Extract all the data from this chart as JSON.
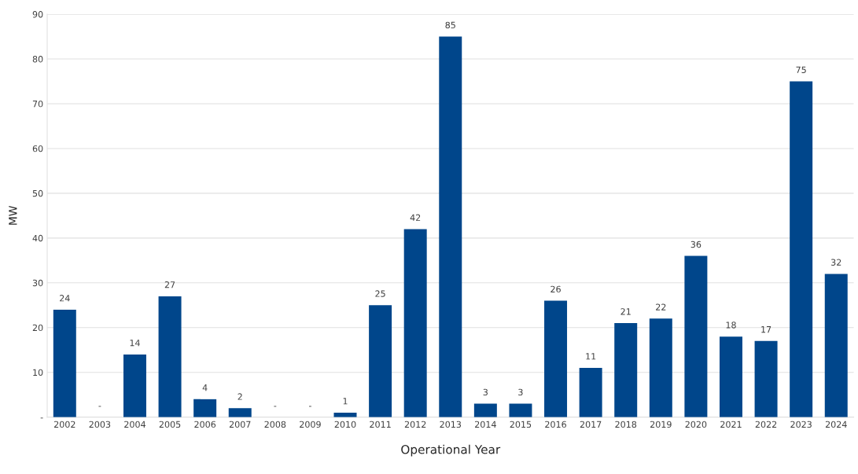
{
  "chart_data": {
    "type": "bar",
    "xlabel": "Operational Year",
    "ylabel": "MW",
    "categories": [
      "2002",
      "2003",
      "2004",
      "2005",
      "2006",
      "2007",
      "2008",
      "2009",
      "2010",
      "2011",
      "2012",
      "2013",
      "2014",
      "2015",
      "2016",
      "2017",
      "2018",
      "2019",
      "2020",
      "2021",
      "2022",
      "2023",
      "2024"
    ],
    "values": [
      24,
      0,
      14,
      27,
      4,
      2,
      0,
      0,
      1,
      25,
      42,
      85,
      3,
      3,
      26,
      11,
      21,
      22,
      36,
      18,
      17,
      75,
      32
    ],
    "value_labels": [
      "24",
      "-",
      "14",
      "27",
      "4",
      "2",
      "-",
      "-",
      "1",
      "25",
      "42",
      "85",
      "3",
      "3",
      "26",
      "11",
      "21",
      "22",
      "36",
      "18",
      "17",
      "75",
      "32"
    ],
    "color": "#00468b",
    "ylim": [
      0,
      90
    ],
    "yticks": [
      {
        "value": 0,
        "label": "-"
      },
      10,
      20,
      30,
      40,
      50,
      60,
      70,
      80,
      90
    ],
    "grid": "y"
  }
}
